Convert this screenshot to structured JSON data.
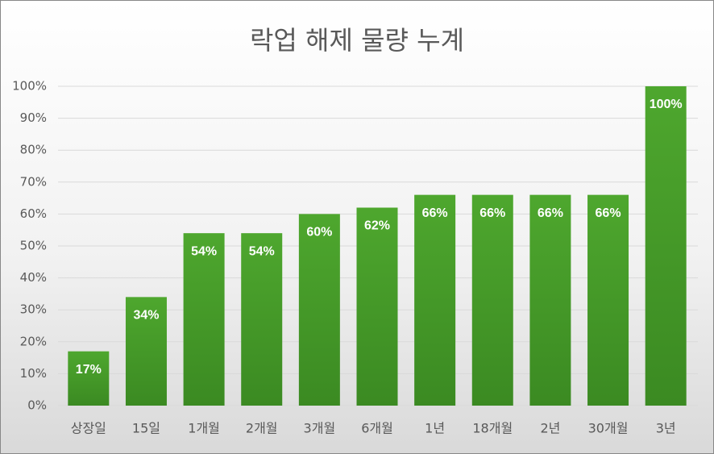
{
  "chart_data": {
    "type": "bar",
    "title": "락업 해제 물량 누계",
    "categories": [
      "상장일",
      "15일",
      "1개월",
      "2개월",
      "3개월",
      "6개월",
      "1년",
      "18개월",
      "2년",
      "30개월",
      "3년"
    ],
    "values": [
      17,
      34,
      54,
      54,
      60,
      62,
      66,
      66,
      66,
      66,
      100
    ],
    "value_labels": [
      "17%",
      "34%",
      "54%",
      "54%",
      "60%",
      "62%",
      "66%",
      "66%",
      "66%",
      "66%",
      "100%"
    ],
    "color": "#4ea72e",
    "ylim": [
      0,
      100
    ],
    "yticks": [
      {
        "value": 0,
        "label": "0%"
      },
      {
        "value": 10,
        "label": "10%"
      },
      {
        "value": 20,
        "label": "20%"
      },
      {
        "value": 30,
        "label": "30%"
      },
      {
        "value": 40,
        "label": "40%"
      },
      {
        "value": 50,
        "label": "50%"
      },
      {
        "value": 60,
        "label": "60%"
      },
      {
        "value": 70,
        "label": "70%"
      },
      {
        "value": 80,
        "label": "80%"
      },
      {
        "value": 90,
        "label": "90%"
      },
      {
        "value": 100,
        "label": "100%"
      }
    ],
    "grid": true
  }
}
